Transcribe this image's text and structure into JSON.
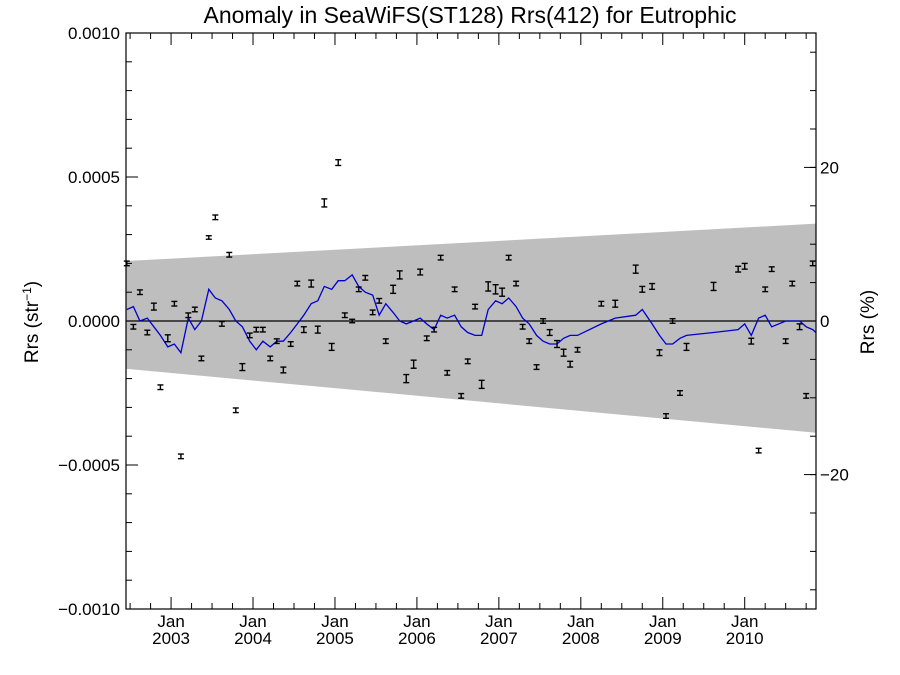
{
  "chart_data": {
    "type": "scatter",
    "title": "Anomaly in SeaWiFS(ST128) Rrs(412) for Eutrophic",
    "ylabel_left_main": "Rrs (str",
    "ylabel_left_sup": "−1",
    "ylabel_left_close": ")",
    "ylabel_right": "Rrs (%)",
    "xlim": [
      2002.45,
      2010.87
    ],
    "ylim": [
      -0.001,
      0.001
    ],
    "y_right_lim": [
      -37.5,
      37.5
    ],
    "left_ticks": [
      {
        "value": 0.001,
        "label": "0.0010"
      },
      {
        "value": 0.0005,
        "label": "0.0005"
      },
      {
        "value": 0.0,
        "label": "0.0000"
      },
      {
        "value": -0.0005,
        "label": "−0.0005"
      },
      {
        "value": -0.001,
        "label": "−0.0010"
      }
    ],
    "right_ticks": [
      {
        "value": 20,
        "label": "20"
      },
      {
        "value": 0,
        "label": "0"
      },
      {
        "value": -20,
        "label": "−20"
      }
    ],
    "x_ticks": [
      {
        "value": 2003.0,
        "month": "Jan",
        "year": "2003"
      },
      {
        "value": 2004.0,
        "month": "Jan",
        "year": "2004"
      },
      {
        "value": 2005.0,
        "month": "Jan",
        "year": "2005"
      },
      {
        "value": 2006.0,
        "month": "Jan",
        "year": "2006"
      },
      {
        "value": 2007.0,
        "month": "Jan",
        "year": "2007"
      },
      {
        "value": 2008.0,
        "month": "Jan",
        "year": "2008"
      },
      {
        "value": 2009.0,
        "month": "Jan",
        "year": "2009"
      },
      {
        "value": 2010.0,
        "month": "Jan",
        "year": "2010"
      }
    ],
    "envelope": {
      "x": [
        2002.45,
        2010.87
      ],
      "upper": [
        0.000208,
        0.000338
      ],
      "lower": [
        -0.000166,
        -0.000388
      ],
      "color": "#bebebe"
    },
    "zero_line": 0.0,
    "series": [
      {
        "kind": "points_with_error_bars",
        "color": "#000000",
        "x": [
          2002.46,
          2002.54,
          2002.62,
          2002.71,
          2002.79,
          2002.87,
          2002.96,
          2003.04,
          2003.12,
          2003.21,
          2003.29,
          2003.37,
          2003.46,
          2003.54,
          2003.62,
          2003.71,
          2003.79,
          2003.87,
          2003.96,
          2004.04,
          2004.12,
          2004.21,
          2004.29,
          2004.37,
          2004.46,
          2004.54,
          2004.62,
          2004.71,
          2004.79,
          2004.87,
          2004.96,
          2005.04,
          2005.12,
          2005.21,
          2005.29,
          2005.37,
          2005.46,
          2005.54,
          2005.62,
          2005.71,
          2005.79,
          2005.87,
          2005.96,
          2006.04,
          2006.12,
          2006.21,
          2006.29,
          2006.37,
          2006.46,
          2006.54,
          2006.62,
          2006.71,
          2006.79,
          2006.87,
          2006.96,
          2007.04,
          2007.12,
          2007.21,
          2007.29,
          2007.37,
          2007.46,
          2007.54,
          2007.62,
          2007.71,
          2007.79,
          2007.87,
          2007.96,
          2008.25,
          2008.42,
          2008.67,
          2008.75,
          2008.87,
          2008.96,
          2009.04,
          2009.12,
          2009.21,
          2009.29,
          2009.62,
          2009.92,
          2010.0,
          2010.08,
          2010.17,
          2010.25,
          2010.33,
          2010.5,
          2010.58,
          2010.67,
          2010.75,
          2010.83
        ],
        "y": [
          0.0002,
          -2e-05,
          0.0001,
          -4e-05,
          5e-05,
          -0.00023,
          -6e-05,
          6e-05,
          -0.00047,
          2e-05,
          4e-05,
          -0.00013,
          0.00029,
          0.00036,
          -1e-05,
          0.00023,
          -0.00031,
          -0.00016,
          -5e-05,
          -3e-05,
          -3e-05,
          -0.00013,
          -7e-05,
          -0.00017,
          -8e-05,
          0.00013,
          -3e-05,
          0.00013,
          -3e-05,
          0.00041,
          -9e-05,
          0.00055,
          2e-05,
          0.0,
          0.00011,
          0.00015,
          3e-05,
          7e-05,
          -7e-05,
          0.00011,
          0.00016,
          -0.0002,
          -0.00015,
          0.00017,
          -6e-05,
          -3e-05,
          0.00022,
          -0.00018,
          0.00011,
          -0.00026,
          -0.00014,
          5e-05,
          -0.00022,
          0.00012,
          0.00011,
          0.0001,
          0.00022,
          0.00013,
          -2e-05,
          -7e-05,
          -0.00016,
          0.0,
          -4e-05,
          -8e-05,
          -0.00011,
          -0.00015,
          -0.0001,
          6e-05,
          6e-05,
          0.00018,
          0.00011,
          0.00012,
          -0.00011,
          -0.00033,
          0.0,
          -0.00025,
          -9e-05,
          0.00012,
          0.00018,
          0.00019,
          -7e-05,
          -0.00045,
          0.00011,
          0.00018,
          -7e-05,
          0.00013,
          -2e-05,
          -0.00026,
          0.0002
        ],
        "err": [
          8e-06,
          8e-06,
          8e-06,
          8e-06,
          1.2e-05,
          8e-06,
          1.2e-05,
          8e-06,
          8e-06,
          8e-06,
          8e-06,
          8e-06,
          6e-06,
          8e-06,
          8e-06,
          8e-06,
          8e-06,
          1.2e-05,
          8e-06,
          8e-06,
          8e-06,
          8e-06,
          8e-06,
          1e-05,
          8e-06,
          8e-06,
          1e-05,
          1.2e-05,
          1.2e-05,
          1.4e-05,
          1.2e-05,
          1e-05,
          8e-06,
          6e-06,
          8e-06,
          8e-06,
          8e-06,
          8e-06,
          8e-06,
          1.4e-05,
          1.4e-05,
          1.4e-05,
          1.4e-05,
          1e-05,
          8e-06,
          8e-06,
          8e-06,
          8e-06,
          8e-06,
          8e-06,
          8e-06,
          8e-06,
          1.4e-05,
          1.6e-05,
          1.6e-05,
          1.4e-05,
          8e-06,
          8e-06,
          8e-06,
          8e-06,
          8e-06,
          8e-06,
          1e-05,
          1.2e-05,
          1.2e-05,
          1e-05,
          8e-06,
          8e-06,
          1.2e-05,
          1.4e-05,
          1e-05,
          1e-05,
          1e-05,
          8e-06,
          8e-06,
          8e-06,
          1.2e-05,
          1.4e-05,
          1e-05,
          1e-05,
          1e-05,
          8e-06,
          8e-06,
          8e-06,
          8e-06,
          8e-06,
          1e-05,
          8e-06,
          8e-06
        ]
      },
      {
        "kind": "line",
        "color": "#0000d0",
        "x": [
          2002.46,
          2002.54,
          2002.62,
          2002.71,
          2002.79,
          2002.87,
          2002.96,
          2003.04,
          2003.12,
          2003.21,
          2003.29,
          2003.37,
          2003.46,
          2003.54,
          2003.62,
          2003.71,
          2003.79,
          2003.87,
          2003.96,
          2004.04,
          2004.12,
          2004.21,
          2004.29,
          2004.37,
          2004.46,
          2004.54,
          2004.62,
          2004.71,
          2004.79,
          2004.87,
          2004.96,
          2005.04,
          2005.12,
          2005.21,
          2005.29,
          2005.37,
          2005.46,
          2005.54,
          2005.62,
          2005.71,
          2005.79,
          2005.87,
          2005.96,
          2006.04,
          2006.12,
          2006.21,
          2006.29,
          2006.37,
          2006.46,
          2006.54,
          2006.62,
          2006.71,
          2006.79,
          2006.87,
          2006.96,
          2007.04,
          2007.12,
          2007.21,
          2007.29,
          2007.37,
          2007.46,
          2007.54,
          2007.62,
          2007.71,
          2007.79,
          2007.87,
          2007.96,
          2008.25,
          2008.42,
          2008.67,
          2008.75,
          2008.87,
          2008.96,
          2009.04,
          2009.12,
          2009.21,
          2009.29,
          2009.62,
          2009.92,
          2010.0,
          2010.08,
          2010.17,
          2010.25,
          2010.33,
          2010.5,
          2010.58,
          2010.67,
          2010.75,
          2010.83,
          2010.87
        ],
        "y": [
          4e-05,
          5e-05,
          0.0,
          1e-05,
          -2e-05,
          -5e-05,
          -9e-05,
          -8e-05,
          -0.00011,
          1e-05,
          -3e-05,
          0.0,
          0.00011,
          8e-05,
          7e-05,
          4e-05,
          0.0,
          -2e-05,
          -7e-05,
          -0.0001,
          -7e-05,
          -9e-05,
          -7e-05,
          -7e-05,
          -4e-05,
          -1e-05,
          2e-05,
          6e-05,
          7e-05,
          0.00012,
          0.00011,
          0.00014,
          0.00014,
          0.00016,
          0.00012,
          0.0001,
          9e-05,
          2e-05,
          6e-05,
          3e-05,
          0.0,
          -1e-05,
          0.0,
          1e-05,
          -1e-05,
          -3e-05,
          2e-05,
          1e-05,
          2e-05,
          -2e-05,
          -4e-05,
          -5e-05,
          -5e-05,
          4e-05,
          7e-05,
          6e-05,
          8e-05,
          5e-05,
          1e-05,
          -1e-05,
          -5e-05,
          -7e-05,
          -8e-05,
          -8e-05,
          -6e-05,
          -5e-05,
          -5e-05,
          -1e-05,
          1e-05,
          2e-05,
          4e-05,
          -1e-05,
          -5e-05,
          -8e-05,
          -8e-05,
          -6e-05,
          -5e-05,
          -4e-05,
          -3e-05,
          -1e-05,
          -5e-05,
          1e-05,
          2e-05,
          -2e-05,
          0.0,
          0.0,
          0.0,
          -2e-05,
          -3e-05,
          -4e-05
        ]
      }
    ]
  }
}
